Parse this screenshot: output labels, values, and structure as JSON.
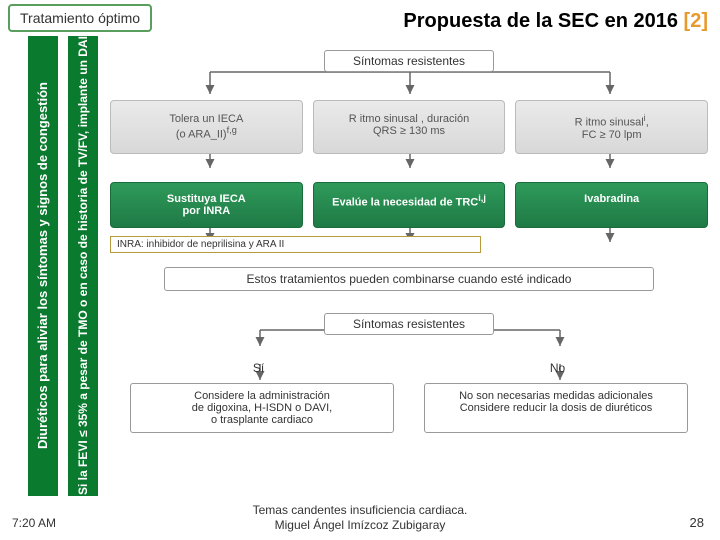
{
  "top_badge": "Tratamiento óptimo",
  "title": {
    "main": "Propuesta de la SEC en 2016 ",
    "ref": "[2]"
  },
  "vbar1": "Diuréticos para aliviar los síntomas y signos de congestión",
  "vbar2": "Si la FEVI ≤ 35% a pesar de TMO o en caso de historia de TV/FV, implante un DAI",
  "sym_res": "Síntomas resistentes",
  "gray": {
    "a": "Tolera un IECA<br>(o ARA_II)",
    "a_sup": "f,g",
    "b": "R itmo sinusal , duración<br>QRS ≥ 130 ms",
    "c": "R itmo sinusal",
    "c_sup": "i",
    "c2": ",<br>FC ≥ 70 lpm"
  },
  "green": {
    "a": "Sustituya IECA<br>por INRA",
    "b": "Evalúe la necesidad de TRC",
    "b_sup": "i,j",
    "c": "Ivabradina"
  },
  "inra_note": "INRA: inhibidor de neprilisina y  ARA II",
  "combine": "Estos tratamientos pueden combinarse cuando esté indicado",
  "yes": "Sí",
  "no": "No",
  "final_yes": "Considere la administración<br>de digoxina, H-ISDN o DAVI,<br>o trasplante cardiaco",
  "final_no": "No son necesarias medidas adicionales<br>Considere reducir la dosis de diuréticos",
  "footer": {
    "time": "7:20 AM",
    "center1": "Temas candentes insuficiencia cardiaca.",
    "center2": "Miguel Ángel Imízcoz Zubigaray",
    "page": "28"
  },
  "colors": {
    "green_bar": "#0a7a2e",
    "green_box": "#2e9a5a",
    "orange": "#e89a2e",
    "border": "#999999"
  }
}
